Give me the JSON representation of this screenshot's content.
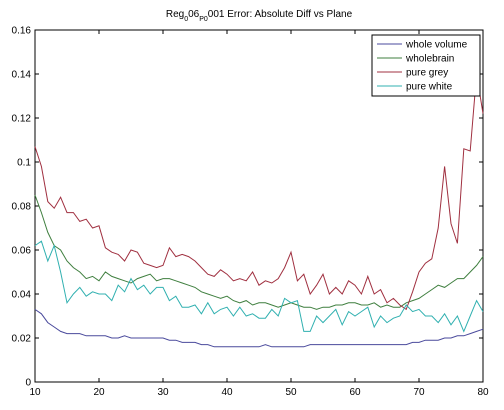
{
  "chart_data": {
    "type": "line",
    "title": [
      {
        "text": "Reg"
      },
      {
        "text": "0",
        "subscript": true
      },
      {
        "text": "06"
      },
      {
        "text": "P0",
        "subscript": true
      },
      {
        "text": "001 Error: Absolute Diff vs Plane"
      }
    ],
    "x": [
      10,
      11,
      12,
      13,
      14,
      15,
      16,
      17,
      18,
      19,
      20,
      21,
      22,
      23,
      24,
      25,
      26,
      27,
      28,
      29,
      30,
      31,
      32,
      33,
      34,
      35,
      36,
      37,
      38,
      39,
      40,
      41,
      42,
      43,
      44,
      45,
      46,
      47,
      48,
      49,
      50,
      51,
      52,
      53,
      54,
      55,
      56,
      57,
      58,
      59,
      60,
      61,
      62,
      63,
      64,
      65,
      66,
      67,
      68,
      69,
      70,
      71,
      72,
      73,
      74,
      75,
      76,
      77,
      78,
      79,
      80
    ],
    "series": [
      {
        "name": "whole volume",
        "color": "#4a4a9c",
        "values": [
          0.033,
          0.031,
          0.027,
          0.025,
          0.023,
          0.022,
          0.022,
          0.022,
          0.021,
          0.021,
          0.021,
          0.021,
          0.02,
          0.02,
          0.021,
          0.02,
          0.02,
          0.02,
          0.02,
          0.02,
          0.02,
          0.019,
          0.019,
          0.018,
          0.018,
          0.018,
          0.017,
          0.017,
          0.016,
          0.016,
          0.016,
          0.016,
          0.016,
          0.016,
          0.016,
          0.016,
          0.017,
          0.016,
          0.016,
          0.016,
          0.016,
          0.016,
          0.016,
          0.017,
          0.017,
          0.017,
          0.017,
          0.017,
          0.017,
          0.017,
          0.017,
          0.017,
          0.017,
          0.017,
          0.017,
          0.017,
          0.017,
          0.017,
          0.017,
          0.018,
          0.018,
          0.019,
          0.019,
          0.019,
          0.02,
          0.02,
          0.021,
          0.021,
          0.022,
          0.023,
          0.024
        ]
      },
      {
        "name": "wholebrain",
        "color": "#3f7f3f",
        "values": [
          0.085,
          0.077,
          0.068,
          0.062,
          0.06,
          0.055,
          0.052,
          0.05,
          0.047,
          0.048,
          0.046,
          0.05,
          0.048,
          0.047,
          0.046,
          0.045,
          0.047,
          0.048,
          0.049,
          0.046,
          0.047,
          0.047,
          0.046,
          0.045,
          0.044,
          0.043,
          0.041,
          0.04,
          0.039,
          0.038,
          0.039,
          0.037,
          0.036,
          0.037,
          0.035,
          0.036,
          0.036,
          0.035,
          0.034,
          0.035,
          0.036,
          0.035,
          0.034,
          0.034,
          0.033,
          0.034,
          0.034,
          0.035,
          0.035,
          0.036,
          0.036,
          0.035,
          0.035,
          0.036,
          0.034,
          0.035,
          0.034,
          0.034,
          0.036,
          0.037,
          0.038,
          0.04,
          0.042,
          0.044,
          0.043,
          0.045,
          0.047,
          0.047,
          0.05,
          0.053,
          0.057
        ]
      },
      {
        "name": "pure grey",
        "color": "#a03040",
        "values": [
          0.107,
          0.098,
          0.082,
          0.079,
          0.084,
          0.077,
          0.077,
          0.073,
          0.074,
          0.07,
          0.071,
          0.061,
          0.059,
          0.058,
          0.055,
          0.06,
          0.059,
          0.054,
          0.053,
          0.052,
          0.053,
          0.061,
          0.057,
          0.058,
          0.057,
          0.055,
          0.052,
          0.049,
          0.048,
          0.051,
          0.049,
          0.046,
          0.047,
          0.046,
          0.05,
          0.044,
          0.046,
          0.045,
          0.047,
          0.052,
          0.059,
          0.046,
          0.049,
          0.04,
          0.044,
          0.049,
          0.04,
          0.043,
          0.04,
          0.046,
          0.044,
          0.04,
          0.048,
          0.04,
          0.042,
          0.036,
          0.038,
          0.035,
          0.033,
          0.041,
          0.05,
          0.054,
          0.056,
          0.07,
          0.098,
          0.072,
          0.063,
          0.106,
          0.105,
          0.14,
          0.122
        ]
      },
      {
        "name": "pure white",
        "color": "#30b0b0",
        "values": [
          0.062,
          0.064,
          0.055,
          0.062,
          0.05,
          0.036,
          0.04,
          0.043,
          0.039,
          0.041,
          0.04,
          0.04,
          0.037,
          0.044,
          0.041,
          0.047,
          0.042,
          0.044,
          0.04,
          0.043,
          0.043,
          0.037,
          0.039,
          0.034,
          0.034,
          0.035,
          0.031,
          0.036,
          0.031,
          0.033,
          0.034,
          0.03,
          0.034,
          0.03,
          0.031,
          0.029,
          0.029,
          0.033,
          0.03,
          0.038,
          0.036,
          0.037,
          0.023,
          0.023,
          0.03,
          0.027,
          0.03,
          0.033,
          0.026,
          0.032,
          0.03,
          0.032,
          0.034,
          0.025,
          0.03,
          0.027,
          0.029,
          0.03,
          0.035,
          0.032,
          0.033,
          0.03,
          0.03,
          0.027,
          0.031,
          0.026,
          0.03,
          0.023,
          0.03,
          0.037,
          0.032
        ]
      }
    ],
    "xlim": [
      10,
      80
    ],
    "xticks": [
      10,
      20,
      30,
      40,
      50,
      60,
      70,
      80
    ],
    "ylim": [
      0,
      0.16
    ],
    "yticks": [
      0,
      0.02,
      0.04,
      0.06,
      0.08,
      0.1,
      0.12,
      0.14,
      0.16
    ],
    "grid": false,
    "legend": "northeast"
  }
}
